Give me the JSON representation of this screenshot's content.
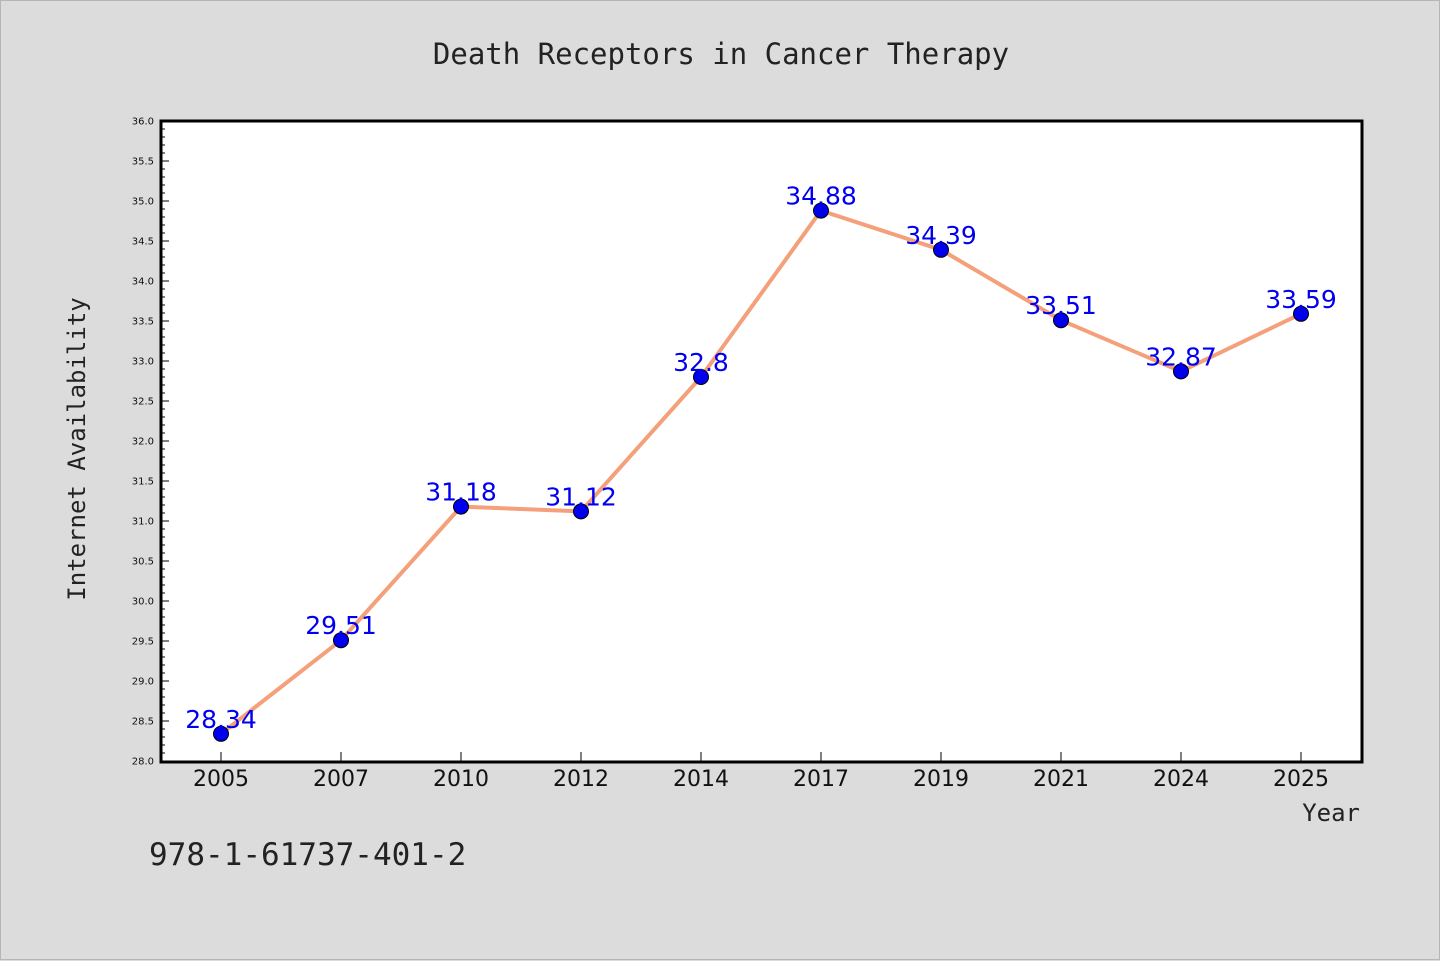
{
  "chart_data": {
    "type": "line",
    "title": "Death Receptors in Cancer Therapy",
    "xlabel": "Year",
    "ylabel": "Internet Availability",
    "categories": [
      "2005",
      "2007",
      "2010",
      "2012",
      "2014",
      "2017",
      "2019",
      "2021",
      "2024",
      "2025"
    ],
    "series": [
      {
        "values": [
          28.34,
          29.51,
          31.18,
          31.12,
          32.8,
          34.88,
          34.39,
          33.51,
          32.87,
          33.59
        ],
        "data_labels": [
          "28.34",
          "29.51",
          "31.18",
          "31.12",
          "32.8",
          "34.88",
          "34.39",
          "33.51",
          "32.87",
          "33.59"
        ],
        "line_color": "#f4a07a",
        "marker_color": "#0000ee"
      }
    ],
    "ylim": [
      28.0,
      36.0
    ],
    "yticks": [
      "28.0",
      "28.5",
      "29.0",
      "29.5",
      "30.0",
      "30.5",
      "31.0",
      "31.5",
      "32.0",
      "32.5",
      "33.0",
      "33.5",
      "34.0",
      "34.5",
      "35.0",
      "35.5",
      "36.0"
    ],
    "grid": false,
    "legend": "none"
  },
  "annotation": "978-1-61737-401-2"
}
